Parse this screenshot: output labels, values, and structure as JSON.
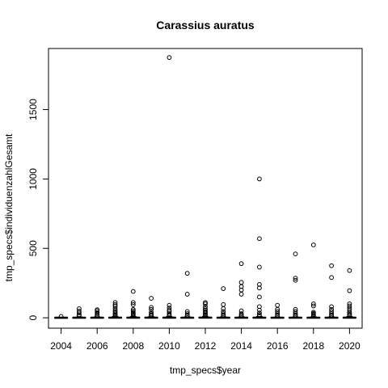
{
  "chart_data": {
    "type": "boxplot",
    "title": "Carassius auratus",
    "xlabel": "tmp_specs$year",
    "ylabel": "tmp_specs$individuenzahlGesamt",
    "xlim": [
      2003.3,
      2020.7
    ],
    "ylim": [
      -75,
      1940
    ],
    "x_ticks": [
      2004,
      2006,
      2008,
      2010,
      2012,
      2014,
      2016,
      2018,
      2020
    ],
    "y_ticks": [
      0,
      500,
      1000,
      1500
    ],
    "grid": false,
    "legend": "none",
    "colors": {
      "stroke": "#000000",
      "background": "#ffffff"
    },
    "boxes": [
      {
        "year": 2004,
        "q1": 0,
        "median": 1,
        "q3": 2,
        "whisker_low": 0,
        "whisker_high": 4,
        "outliers": [
          10
        ]
      },
      {
        "year": 2005,
        "q1": 0,
        "median": 1,
        "q3": 3,
        "whisker_low": 0,
        "whisker_high": 6,
        "outliers": [
          15,
          22,
          35,
          48,
          65
        ]
      },
      {
        "year": 2006,
        "q1": 0,
        "median": 1,
        "q3": 3,
        "whisker_low": 0,
        "whisker_high": 7,
        "outliers": [
          12,
          20,
          30,
          38,
          50,
          58
        ]
      },
      {
        "year": 2007,
        "q1": 0,
        "median": 1,
        "q3": 4,
        "whisker_low": 0,
        "whisker_high": 9,
        "outliers": [
          14,
          20,
          28,
          36,
          45,
          55,
          70,
          85,
          95,
          110
        ]
      },
      {
        "year": 2008,
        "q1": 0,
        "median": 1,
        "q3": 4,
        "whisker_low": 0,
        "whisker_high": 9,
        "outliers": [
          14,
          20,
          26,
          32,
          40,
          50,
          60,
          95,
          110,
          190
        ]
      },
      {
        "year": 2009,
        "q1": 0,
        "median": 1,
        "q3": 4,
        "whisker_low": 0,
        "whisker_high": 8,
        "outliers": [
          13,
          20,
          28,
          40,
          60,
          75,
          140
        ]
      },
      {
        "year": 2010,
        "q1": 0,
        "median": 1,
        "q3": 4,
        "whisker_low": 0,
        "whisker_high": 9,
        "outliers": [
          15,
          22,
          30,
          45,
          55,
          70,
          90,
          1875
        ]
      },
      {
        "year": 2011,
        "q1": 0,
        "median": 1,
        "q3": 3,
        "whisker_low": 0,
        "whisker_high": 7,
        "outliers": [
          12,
          20,
          30,
          45,
          170,
          320
        ]
      },
      {
        "year": 2012,
        "q1": 0,
        "median": 1,
        "q3": 4,
        "whisker_low": 0,
        "whisker_high": 9,
        "outliers": [
          14,
          20,
          28,
          36,
          45,
          55,
          65,
          80,
          100,
          110
        ]
      },
      {
        "year": 2013,
        "q1": 0,
        "median": 1,
        "q3": 3,
        "whisker_low": 0,
        "whisker_high": 7,
        "outliers": [
          12,
          20,
          30,
          45,
          65,
          95,
          210
        ]
      },
      {
        "year": 2014,
        "q1": 0,
        "median": 1,
        "q3": 3,
        "whisker_low": 0,
        "whisker_high": 7,
        "outliers": [
          12,
          20,
          30,
          50,
          170,
          200,
          225,
          255,
          390
        ]
      },
      {
        "year": 2015,
        "q1": 0,
        "median": 1,
        "q3": 4,
        "whisker_low": 0,
        "whisker_high": 9,
        "outliers": [
          14,
          22,
          35,
          55,
          80,
          150,
          215,
          240,
          365,
          570,
          1000
        ]
      },
      {
        "year": 2016,
        "q1": 0,
        "median": 1,
        "q3": 3,
        "whisker_low": 0,
        "whisker_high": 6,
        "outliers": [
          12,
          20,
          30,
          45,
          60,
          90
        ]
      },
      {
        "year": 2017,
        "q1": 0,
        "median": 1,
        "q3": 3,
        "whisker_low": 0,
        "whisker_high": 6,
        "outliers": [
          12,
          20,
          30,
          45,
          60,
          270,
          285,
          460
        ]
      },
      {
        "year": 2018,
        "q1": 0,
        "median": 1,
        "q3": 3,
        "whisker_low": 0,
        "whisker_high": 7,
        "outliers": [
          12,
          18,
          25,
          32,
          40,
          85,
          100,
          525
        ]
      },
      {
        "year": 2019,
        "q1": 0,
        "median": 1,
        "q3": 3,
        "whisker_low": 0,
        "whisker_high": 7,
        "outliers": [
          12,
          20,
          30,
          45,
          60,
          80,
          290,
          375
        ]
      },
      {
        "year": 2020,
        "q1": 0,
        "median": 1,
        "q3": 4,
        "whisker_low": 0,
        "whisker_high": 9,
        "outliers": [
          14,
          22,
          30,
          40,
          55,
          70,
          85,
          100,
          195,
          340
        ]
      }
    ]
  }
}
